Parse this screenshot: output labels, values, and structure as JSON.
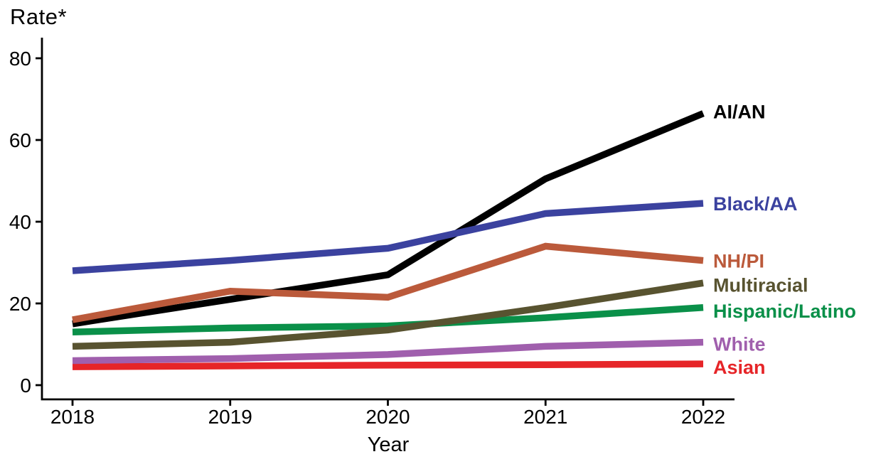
{
  "chart_data": {
    "type": "line",
    "title": "Rate*",
    "xlabel": "Year",
    "ylabel": "Rate*",
    "categories": [
      "2018",
      "2019",
      "2020",
      "2021",
      "2022"
    ],
    "y_ticks": [
      0,
      20,
      40,
      60,
      80
    ],
    "ylim": [
      0,
      84
    ],
    "grid": false,
    "legend_position": "right-end-labels",
    "axis_color": "#000000",
    "series": [
      {
        "name": "AI/AN",
        "color": "#000000",
        "values": [
          15,
          21,
          27,
          50.5,
          66.5
        ]
      },
      {
        "name": "Black/AA",
        "color": "#3B429F",
        "values": [
          28,
          30.5,
          33.5,
          42,
          44.5
        ]
      },
      {
        "name": "NH/PI",
        "color": "#BB5A3B",
        "values": [
          16,
          23,
          21.5,
          34,
          30.5
        ]
      },
      {
        "name": "Multiracial",
        "color": "#585330",
        "values": [
          9.5,
          10.5,
          13.5,
          19,
          25
        ]
      },
      {
        "name": "Hispanic/Latino",
        "color": "#0A9049",
        "values": [
          13,
          14,
          14.5,
          16.5,
          19
        ]
      },
      {
        "name": "White",
        "color": "#A05FAD",
        "values": [
          6,
          6.5,
          7.5,
          9.5,
          10.5
        ]
      },
      {
        "name": "Asian",
        "color": "#E62528",
        "values": [
          4.5,
          4.7,
          4.9,
          5,
          5.2
        ]
      }
    ]
  }
}
